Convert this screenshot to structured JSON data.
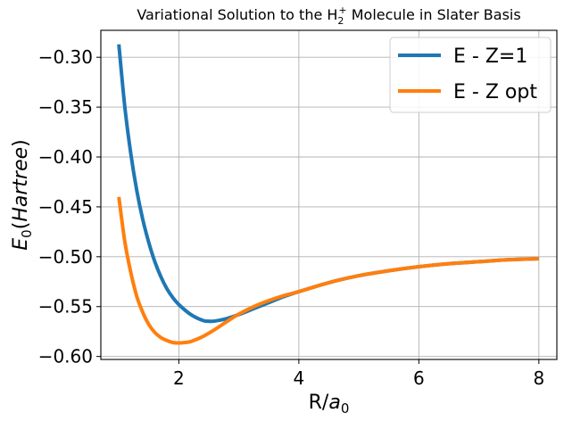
{
  "chart_data": {
    "type": "line",
    "title": {
      "prefix": "Variational Solution to the H",
      "subscript": "2",
      "superscript": "+",
      "suffix": " Molecule in Slater Basis"
    },
    "xlabel": {
      "main": "R/",
      "italic": "a",
      "subscript": "0"
    },
    "ylabel": {
      "italic_main": "E",
      "subscript": "0",
      "rest": "(",
      "italic_rest": "Hartree",
      "close": ")"
    },
    "xlim": [
      0.7,
      8.3
    ],
    "ylim": [
      -0.603,
      -0.273
    ],
    "xticks": [
      2,
      4,
      6,
      8
    ],
    "xtick_labels": [
      "2",
      "4",
      "6",
      "8"
    ],
    "yticks": [
      -0.3,
      -0.35,
      -0.4,
      -0.45,
      -0.5,
      -0.55,
      -0.6
    ],
    "ytick_labels": [
      "−0.30",
      "−0.35",
      "−0.40",
      "−0.45",
      "−0.50",
      "−0.55",
      "−0.60"
    ],
    "grid": true,
    "legend_position": "top-right",
    "series": [
      {
        "name": "E - Z=1",
        "color": "#1f77b4",
        "x": [
          1.0,
          1.1,
          1.2,
          1.3,
          1.4,
          1.5,
          1.6,
          1.7,
          1.8,
          1.9,
          2.0,
          2.2,
          2.4,
          2.5,
          2.6,
          2.8,
          3.0,
          3.25,
          3.5,
          3.75,
          4.0,
          4.5,
          5.0,
          5.5,
          6.0,
          6.5,
          7.0,
          7.5,
          8.0
        ],
        "y": [
          -0.287,
          -0.35,
          -0.397,
          -0.434,
          -0.463,
          -0.486,
          -0.505,
          -0.52,
          -0.532,
          -0.541,
          -0.548,
          -0.558,
          -0.5639,
          -0.5647,
          -0.5645,
          -0.562,
          -0.558,
          -0.552,
          -0.546,
          -0.54,
          -0.535,
          -0.526,
          -0.519,
          -0.514,
          -0.51,
          -0.507,
          -0.505,
          -0.503,
          -0.502
        ]
      },
      {
        "name": "E - Z opt",
        "color": "#ff7f0e",
        "x": [
          1.0,
          1.1,
          1.2,
          1.3,
          1.4,
          1.5,
          1.6,
          1.7,
          1.8,
          1.9,
          2.0,
          2.1,
          2.2,
          2.4,
          2.6,
          2.8,
          3.0,
          3.25,
          3.5,
          3.75,
          4.0,
          4.5,
          5.0,
          5.5,
          6.0,
          6.5,
          7.0,
          7.5,
          8.0
        ],
        "y": [
          -0.44,
          -0.485,
          -0.516,
          -0.54,
          -0.556,
          -0.568,
          -0.576,
          -0.581,
          -0.584,
          -0.586,
          -0.5865,
          -0.586,
          -0.585,
          -0.58,
          -0.573,
          -0.565,
          -0.5575,
          -0.55,
          -0.544,
          -0.539,
          -0.535,
          -0.526,
          -0.519,
          -0.514,
          -0.51,
          -0.507,
          -0.505,
          -0.503,
          -0.502
        ]
      }
    ]
  }
}
